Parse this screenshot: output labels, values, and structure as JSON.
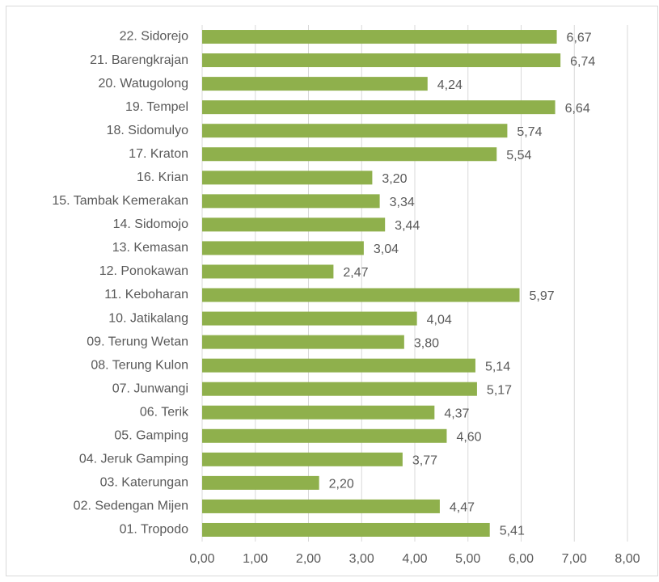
{
  "chart_data": {
    "type": "bar",
    "orientation": "horizontal",
    "categories": [
      "22. Sidorejo",
      "21. Barengkrajan",
      "20. Watugolong",
      "19. Tempel",
      "18. Sidomulyo",
      "17. Kraton",
      "16. Krian",
      "15. Tambak Kemerakan",
      "14. Sidomojo",
      "13. Kemasan",
      "12. Ponokawan",
      "11. Keboharan",
      "10. Jatikalang",
      "09. Terung Wetan",
      "08. Terung Kulon",
      "07. Junwangi",
      "06. Terik",
      "05. Gamping",
      "04. Jeruk Gamping",
      "03. Katerungan",
      "02. Sedengan Mijen",
      "01. Tropodo"
    ],
    "values": [
      6.67,
      6.74,
      4.24,
      6.64,
      5.74,
      5.54,
      3.2,
      3.34,
      3.44,
      3.04,
      2.47,
      5.97,
      4.04,
      3.8,
      5.14,
      5.17,
      4.37,
      4.6,
      3.77,
      2.2,
      4.47,
      5.41
    ],
    "value_labels": [
      "6,67",
      "6,74",
      "4,24",
      "6,64",
      "5,74",
      "5,54",
      "3,20",
      "3,34",
      "3,44",
      "3,04",
      "2,47",
      "5,97",
      "4,04",
      "3,80",
      "5,14",
      "5,17",
      "4,37",
      "4,60",
      "3,77",
      "2,20",
      "4,47",
      "5,41"
    ],
    "color": "#8fb04c",
    "xlim": [
      0,
      8
    ],
    "xticks": [
      {
        "value": 0,
        "label": "0,00"
      },
      {
        "value": 1,
        "label": "1,00"
      },
      {
        "value": 2,
        "label": "2,00"
      },
      {
        "value": 3,
        "label": "3,00"
      },
      {
        "value": 4,
        "label": "4,00"
      },
      {
        "value": 5,
        "label": "5,00"
      },
      {
        "value": 6,
        "label": "6,00"
      },
      {
        "value": 7,
        "label": "7,00"
      },
      {
        "value": 8,
        "label": "8,00"
      }
    ],
    "grid": true
  }
}
